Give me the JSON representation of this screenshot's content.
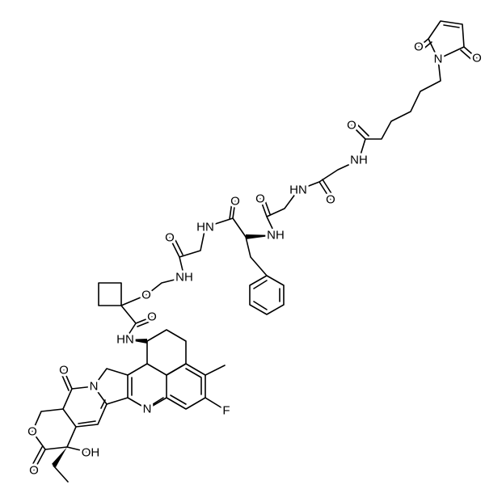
{
  "atom_labels": [
    "O",
    "N",
    "O",
    "O",
    "NH",
    "HN",
    "O",
    "O",
    "O",
    "HN",
    "NH",
    "O",
    "NH",
    "O",
    "O",
    "HN",
    "O",
    "N",
    "N",
    "O",
    "O",
    "OH",
    "F"
  ]
}
